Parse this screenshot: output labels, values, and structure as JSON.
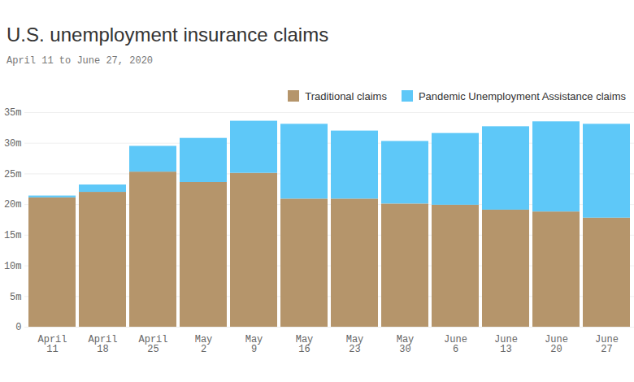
{
  "chart_data": {
    "type": "bar",
    "title": "U.S. unemployment insurance claims",
    "subtitle": "April 11 to June 27, 2020",
    "categories": [
      "April 11",
      "April 18",
      "April 25",
      "May 2",
      "May 9",
      "May 16",
      "May 23",
      "May 30",
      "June 6",
      "June 13",
      "June 20",
      "June 27"
    ],
    "series": [
      {
        "name": "Traditional claims",
        "color": "#b5956b",
        "values": [
          21.1,
          22.0,
          25.3,
          23.6,
          25.1,
          20.9,
          20.9,
          20.1,
          19.9,
          19.1,
          18.8,
          17.8
        ]
      },
      {
        "name": "Pandemic Unemployment Assistance claims",
        "color": "#5ec8f8",
        "values": [
          0.3,
          1.2,
          4.2,
          7.2,
          8.5,
          12.2,
          11.1,
          10.2,
          11.7,
          13.6,
          14.7,
          15.3
        ]
      }
    ],
    "stacked": true,
    "ylim": [
      0,
      35
    ],
    "yticks": [
      0,
      {
        "value": 5,
        "label": "5m"
      },
      {
        "value": 10,
        "label": "10m"
      },
      {
        "value": 15,
        "label": "15m"
      },
      {
        "value": 20,
        "label": "20m"
      },
      {
        "value": 25,
        "label": "25m"
      },
      {
        "value": 30,
        "label": "30m"
      },
      {
        "value": 35,
        "label": "35m"
      }
    ],
    "grid": true,
    "legend": "top-right"
  }
}
